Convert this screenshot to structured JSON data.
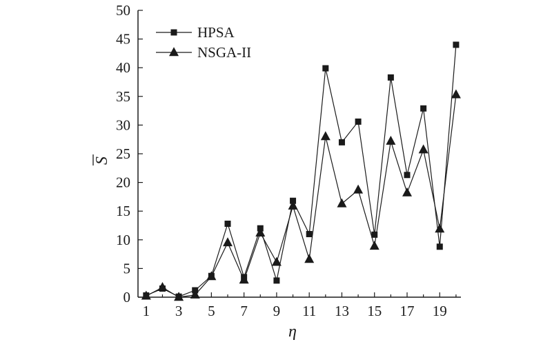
{
  "chart_data": {
    "type": "line",
    "title": "",
    "xlabel": "η",
    "ylabel": "S",
    "ylabel_overbar": true,
    "x": [
      1,
      2,
      3,
      4,
      5,
      6,
      7,
      8,
      9,
      10,
      11,
      12,
      13,
      14,
      15,
      16,
      17,
      18,
      19,
      20
    ],
    "x_tick_labels": [
      "1",
      "3",
      "5",
      "7",
      "9",
      "11",
      "13",
      "15",
      "17",
      "19"
    ],
    "x_tick_values": [
      1,
      3,
      5,
      7,
      9,
      11,
      13,
      15,
      17,
      19
    ],
    "xlim": [
      0.5,
      20.3
    ],
    "ylim": [
      0,
      50
    ],
    "y_tick_values": [
      0,
      5,
      10,
      15,
      20,
      25,
      30,
      35,
      40,
      45,
      50
    ],
    "y_tick_labels": [
      "0",
      "5",
      "10",
      "15",
      "20",
      "25",
      "30",
      "35",
      "40",
      "45",
      "50"
    ],
    "grid": false,
    "legend_position": "top-left",
    "series": [
      {
        "name": "HPSA",
        "marker": "square",
        "values": [
          0.3,
          1.5,
          0.1,
          1.2,
          3.7,
          12.8,
          3.5,
          12.0,
          2.9,
          16.8,
          11.0,
          39.9,
          27.0,
          30.6,
          10.9,
          38.3,
          21.3,
          32.9,
          8.8,
          44.0
        ]
      },
      {
        "name": "NSGA-II",
        "marker": "triangle",
        "values": [
          0.2,
          1.7,
          0.0,
          0.4,
          3.6,
          9.5,
          3.0,
          11.2,
          6.1,
          15.9,
          6.6,
          28.0,
          16.3,
          18.7,
          8.9,
          27.2,
          18.2,
          25.7,
          11.9,
          35.3
        ]
      }
    ],
    "colors": {
      "line": "#1a1a1a",
      "marker": "#1a1a1a",
      "axis": "#1a1a1a"
    }
  }
}
